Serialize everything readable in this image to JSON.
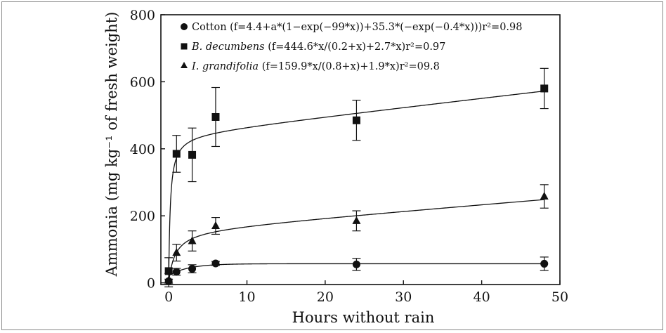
{
  "chart_data": {
    "type": "scatter",
    "title": "",
    "xlabel": "Hours without rain",
    "ylabel": "Ammonia (mg kg⁻¹ of fresh weight)",
    "xlim": [
      -1,
      50
    ],
    "ylim": [
      -5,
      800
    ],
    "xticks": [
      0,
      10,
      20,
      30,
      40,
      50
    ],
    "yticks": [
      0,
      200,
      400,
      600,
      800
    ],
    "grid": false,
    "legend_position": "top",
    "series": [
      {
        "name": "Cotton",
        "fit_label": "(f=4.4+a*(1−exp(−99*x))+35.3*(−exp(−0.4*x)))r²=0.98",
        "marker": "circle",
        "points": [
          {
            "x": 0,
            "y": 5,
            "err": 6
          },
          {
            "x": 1,
            "y": 33,
            "err": 10
          },
          {
            "x": 3,
            "y": 42,
            "err": 12
          },
          {
            "x": 6,
            "y": 58,
            "err": 6
          },
          {
            "x": 24,
            "y": 55,
            "err": 18
          },
          {
            "x": 48,
            "y": 57,
            "err": 20
          }
        ]
      },
      {
        "name": "B. decumbens",
        "fit_label": "(f=444.6*x/(0.2+x)+2.7*x)r²=0.97",
        "marker": "square",
        "points": [
          {
            "x": 0,
            "y": 35,
            "err": 40
          },
          {
            "x": 1,
            "y": 385,
            "err": 55
          },
          {
            "x": 3,
            "y": 382,
            "err": 80
          },
          {
            "x": 6,
            "y": 495,
            "err": 88
          },
          {
            "x": 24,
            "y": 485,
            "err": 60
          },
          {
            "x": 48,
            "y": 580,
            "err": 60
          }
        ]
      },
      {
        "name": "I. grandifolia",
        "fit_label": "(f=159.9*x/(0.8+x)+1.9*x)r²=09.8",
        "marker": "triangle",
        "points": [
          {
            "x": 0,
            "y": 8,
            "err": 20
          },
          {
            "x": 1,
            "y": 90,
            "err": 25
          },
          {
            "x": 3,
            "y": 125,
            "err": 30
          },
          {
            "x": 6,
            "y": 170,
            "err": 25
          },
          {
            "x": 24,
            "y": 185,
            "err": 30
          },
          {
            "x": 48,
            "y": 258,
            "err": 35
          }
        ]
      }
    ]
  }
}
